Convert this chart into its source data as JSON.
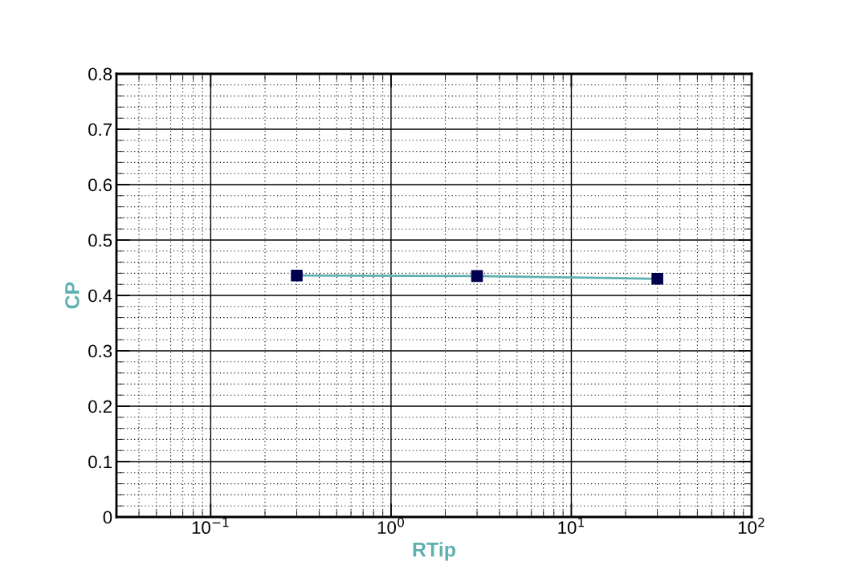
{
  "chart_data": {
    "type": "line",
    "xlabel": "RTip",
    "ylabel": "CP",
    "log": "x",
    "x": [
      0.3,
      3,
      30
    ],
    "series": [
      {
        "color": "#5fb0b0",
        "values": [
          0.436,
          0.435,
          0.43
        ]
      },
      {
        "type": "scatter",
        "color": "#000050",
        "marker": "square",
        "values": [
          0.436,
          0.435,
          0.43
        ]
      }
    ],
    "xlim": [
      0.03,
      100
    ],
    "xticks": [
      {
        "value": 0.1,
        "label": "10$^{−1}$"
      },
      {
        "value": 1,
        "label": "10$^{0}$"
      },
      {
        "value": 10,
        "label": "10$^{1}$"
      },
      {
        "value": 100,
        "label": "10$^{2}$"
      }
    ],
    "ylim": [
      0,
      0.8
    ],
    "yticks": [
      0,
      0.1,
      0.2,
      0.3,
      0.4,
      0.5,
      0.6,
      0.7,
      0.8
    ],
    "grid": true
  }
}
